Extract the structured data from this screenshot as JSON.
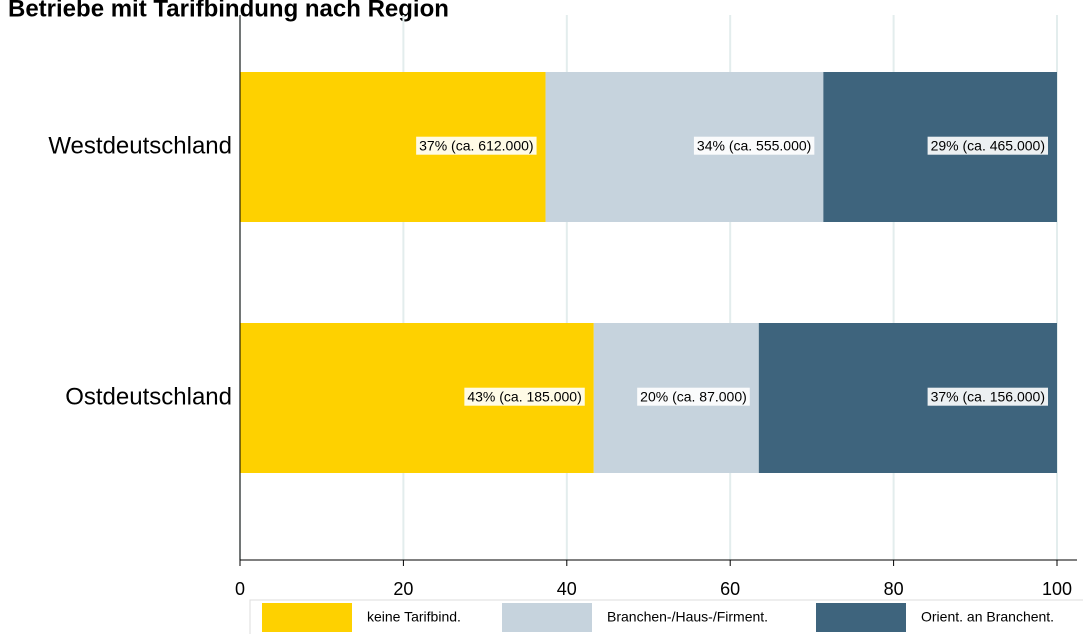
{
  "chart_data": {
    "type": "stacked-barh",
    "title": "Betriebe mit Tarifbindung nach Region",
    "categories": [
      "Westdeutschland",
      "Ostdeutschland"
    ],
    "series": [
      {
        "name": "keine Tarifbind.",
        "color": "#fed100",
        "values": [
          37.4,
          43.3
        ],
        "value_labels": [
          "37% (ca. 612.000)",
          "43% (ca. 185.000)"
        ]
      },
      {
        "name": "Branchen-/Haus-/Firment.",
        "color": "#c6d3dd",
        "values": [
          34.0,
          20.2
        ],
        "value_labels": [
          "34% (ca. 555.000)",
          "20% (ca. 87.000)"
        ]
      },
      {
        "name": "Orient. an Branchent.",
        "color": "#3e647d",
        "values": [
          28.6,
          36.5
        ],
        "value_labels": [
          "29% (ca. 465.000)",
          "37% (ca. 156.000)"
        ]
      }
    ],
    "xlim": [
      0,
      100
    ],
    "xticks": [
      0,
      20,
      40,
      60,
      80,
      100
    ],
    "grid": true,
    "legend": "bottom"
  }
}
